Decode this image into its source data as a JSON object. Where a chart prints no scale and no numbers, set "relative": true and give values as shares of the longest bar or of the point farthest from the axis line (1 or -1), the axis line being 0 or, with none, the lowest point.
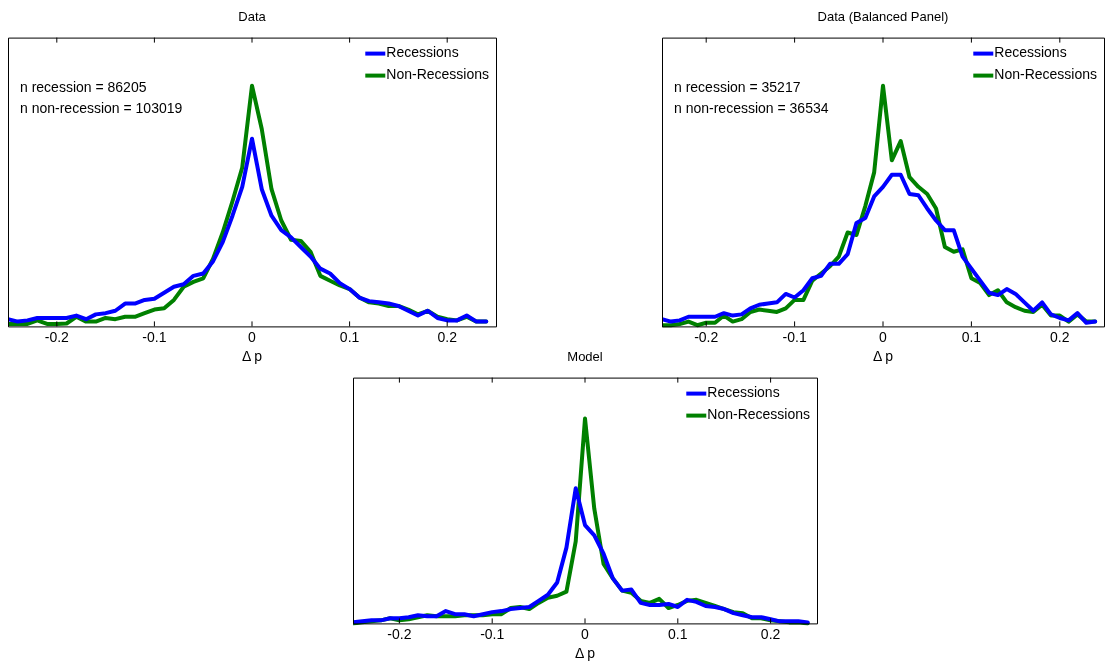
{
  "chart_data": [
    {
      "type": "line",
      "title": "Data",
      "xlabel": "Δ p",
      "relative": true,
      "xlim": [
        -0.25,
        0.25
      ],
      "xticks": [
        -0.2,
        -0.1,
        0,
        0.1,
        0.2
      ],
      "legend": "top right",
      "grid": false,
      "marker": "none",
      "annotations": [
        "n recession = 86205",
        "n non-recession = 103019"
      ],
      "x": [
        -0.25,
        -0.24,
        -0.23,
        -0.22,
        -0.21,
        -0.2,
        -0.19,
        -0.18,
        -0.17,
        -0.16,
        -0.15,
        -0.14,
        -0.13,
        -0.12,
        -0.11,
        -0.1,
        -0.09,
        -0.08,
        -0.07,
        -0.06,
        -0.05,
        -0.04,
        -0.03,
        -0.02,
        -0.01,
        0,
        0.01,
        0.02,
        0.03,
        0.04,
        0.05,
        0.06,
        0.07,
        0.08,
        0.09,
        0.1,
        0.11,
        0.12,
        0.13,
        0.14,
        0.15,
        0.16,
        0.17,
        0.18,
        0.19,
        0.2,
        0.21,
        0.22,
        0.23,
        0.24
      ],
      "series": [
        {
          "name": "Recessions",
          "color": "#0000ff",
          "values": [
            0.03,
            0.02,
            0.025,
            0.035,
            0.035,
            0.035,
            0.035,
            0.045,
            0.03,
            0.05,
            0.055,
            0.065,
            0.095,
            0.095,
            0.11,
            0.115,
            0.14,
            0.165,
            0.175,
            0.21,
            0.22,
            0.27,
            0.35,
            0.46,
            0.58,
            0.78,
            0.57,
            0.46,
            0.4,
            0.37,
            0.33,
            0.29,
            0.24,
            0.22,
            0.18,
            0.155,
            0.12,
            0.105,
            0.1,
            0.095,
            0.085,
            0.065,
            0.045,
            0.065,
            0.035,
            0.025,
            0.025,
            0.045,
            0.02,
            0.02
          ]
        },
        {
          "name": "Non-Recessions",
          "color": "#008000",
          "values": [
            0.01,
            0.01,
            0.01,
            0.025,
            0.01,
            0.01,
            0.012,
            0.04,
            0.02,
            0.02,
            0.035,
            0.03,
            0.04,
            0.04,
            0.055,
            0.07,
            0.075,
            0.11,
            0.165,
            0.185,
            0.2,
            0.28,
            0.39,
            0.52,
            0.66,
            1,
            0.82,
            0.57,
            0.44,
            0.36,
            0.355,
            0.31,
            0.21,
            0.19,
            0.17,
            0.155,
            0.12,
            0.1,
            0.095,
            0.085,
            0.085,
            0.07,
            0.05,
            0.065,
            0.04,
            0.03,
            0.025,
            0.04,
            0.02,
            0.02
          ]
        }
      ]
    },
    {
      "type": "line",
      "title": "Data (Balanced Panel)",
      "xlabel": "Δ p",
      "relative": true,
      "xlim": [
        -0.25,
        0.25
      ],
      "xticks": [
        -0.2,
        -0.1,
        0,
        0.1,
        0.2
      ],
      "legend": "top right",
      "grid": false,
      "marker": "none",
      "annotations": [
        "n recession = 35217",
        "n non-recession = 36534"
      ],
      "x": [
        -0.25,
        -0.24,
        -0.23,
        -0.22,
        -0.21,
        -0.2,
        -0.19,
        -0.18,
        -0.17,
        -0.16,
        -0.15,
        -0.14,
        -0.13,
        -0.12,
        -0.11,
        -0.1,
        -0.09,
        -0.08,
        -0.07,
        -0.06,
        -0.05,
        -0.04,
        -0.03,
        -0.02,
        -0.01,
        0,
        0.01,
        0.02,
        0.03,
        0.04,
        0.05,
        0.06,
        0.07,
        0.08,
        0.09,
        0.1,
        0.11,
        0.12,
        0.13,
        0.14,
        0.15,
        0.16,
        0.17,
        0.18,
        0.19,
        0.2,
        0.21,
        0.22,
        0.23,
        0.24
      ],
      "series": [
        {
          "name": "Recessions",
          "color": "#0000ff",
          "values": [
            0.03,
            0.02,
            0.025,
            0.04,
            0.04,
            0.04,
            0.04,
            0.055,
            0.045,
            0.05,
            0.075,
            0.09,
            0.095,
            0.1,
            0.135,
            0.12,
            0.15,
            0.2,
            0.21,
            0.26,
            0.26,
            0.3,
            0.43,
            0.45,
            0.54,
            0.58,
            0.63,
            0.63,
            0.55,
            0.545,
            0.49,
            0.44,
            0.4,
            0.4,
            0.29,
            0.24,
            0.19,
            0.14,
            0.13,
            0.155,
            0.135,
            0.1,
            0.065,
            0.1,
            0.05,
            0.035,
            0.025,
            0.055,
            0.015,
            0.02
          ]
        },
        {
          "name": "Non-Recessions",
          "color": "#008000",
          "values": [
            0.005,
            0.005,
            0.01,
            0.02,
            0.005,
            0.015,
            0.015,
            0.045,
            0.02,
            0.03,
            0.06,
            0.07,
            0.065,
            0.06,
            0.075,
            0.11,
            0.11,
            0.19,
            0.22,
            0.25,
            0.29,
            0.39,
            0.38,
            0.5,
            0.64,
            1,
            0.69,
            0.77,
            0.62,
            0.58,
            0.55,
            0.49,
            0.33,
            0.31,
            0.32,
            0.2,
            0.18,
            0.13,
            0.15,
            0.1,
            0.08,
            0.065,
            0.06,
            0.09,
            0.045,
            0.045,
            0.02,
            0.05,
            0.02,
            0.02
          ]
        }
      ]
    },
    {
      "type": "line",
      "title": "Model",
      "xlabel": "Δ p",
      "relative": true,
      "xlim": [
        -0.25,
        0.25
      ],
      "xticks": [
        -0.2,
        -0.1,
        0,
        0.1,
        0.2
      ],
      "legend": "top right",
      "grid": false,
      "marker": "none",
      "x": [
        -0.25,
        -0.24,
        -0.23,
        -0.22,
        -0.21,
        -0.2,
        -0.19,
        -0.18,
        -0.17,
        -0.16,
        -0.15,
        -0.14,
        -0.13,
        -0.12,
        -0.11,
        -0.1,
        -0.09,
        -0.08,
        -0.07,
        -0.06,
        -0.05,
        -0.04,
        -0.03,
        -0.02,
        -0.01,
        0,
        0.01,
        0.02,
        0.03,
        0.04,
        0.05,
        0.06,
        0.07,
        0.08,
        0.09,
        0.1,
        0.11,
        0.12,
        0.13,
        0.14,
        0.15,
        0.16,
        0.17,
        0.18,
        0.19,
        0.2,
        0.21,
        0.22,
        0.23,
        0.24
      ],
      "series": [
        {
          "name": "Recessions",
          "color": "#0000ff",
          "values": [
            0.005,
            0.01,
            0.015,
            0.015,
            0.025,
            0.025,
            0.03,
            0.04,
            0.035,
            0.035,
            0.06,
            0.045,
            0.045,
            0.035,
            0.045,
            0.055,
            0.06,
            0.07,
            0.075,
            0.08,
            0.11,
            0.14,
            0.2,
            0.37,
            0.66,
            0.48,
            0.43,
            0.34,
            0.22,
            0.16,
            0.165,
            0.1,
            0.09,
            0.09,
            0.095,
            0.08,
            0.115,
            0.105,
            0.085,
            0.08,
            0.07,
            0.05,
            0.04,
            0.03,
            0.03,
            0.02,
            0.01,
            0.01,
            0.01,
            0.005
          ]
        },
        {
          "name": "Non-Recessions",
          "color": "#008000",
          "values": [
            0,
            0.005,
            0.01,
            0.015,
            0.025,
            0.015,
            0.02,
            0.03,
            0.04,
            0.035,
            0.035,
            0.035,
            0.04,
            0.04,
            0.04,
            0.045,
            0.045,
            0.075,
            0.08,
            0.07,
            0.1,
            0.125,
            0.135,
            0.155,
            0.4,
            1,
            0.56,
            0.29,
            0.22,
            0.16,
            0.15,
            0.11,
            0.1,
            0.12,
            0.075,
            0.09,
            0.11,
            0.115,
            0.1,
            0.085,
            0.07,
            0.055,
            0.05,
            0.025,
            0.025,
            0.015,
            0.01,
            0.005,
            0.005,
            0
          ]
        }
      ]
    }
  ]
}
